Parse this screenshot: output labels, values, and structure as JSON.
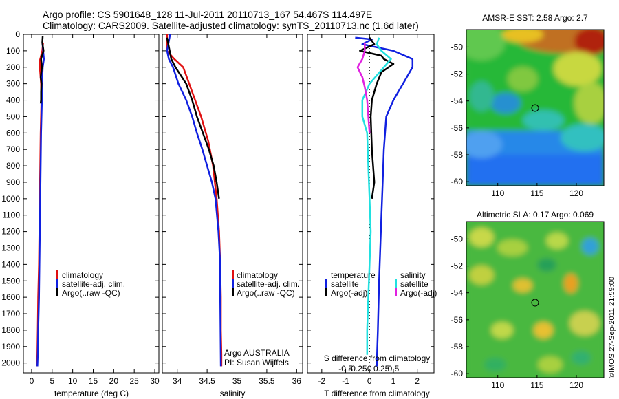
{
  "header": {
    "line1": "Argo profile: CS 5901648_128 11-Jul-2011 20110713_167 54.467S 114.497E",
    "line2": "Climatology: CARS2009. Satellite-adjusted climatology: synTS_20110713.nc (1.6d later)"
  },
  "colors": {
    "climatology": "#e01010",
    "satellite": "#1020e0",
    "argo": "#000000",
    "satellite_s": "#20e0e0",
    "argo_s": "#e020e0"
  },
  "chart_data": [
    {
      "type": "line",
      "panel": "temperature",
      "xlabel": "temperature (deg C)",
      "ylabel": "",
      "xlim": [
        -2,
        31
      ],
      "ylim": [
        2060,
        0
      ],
      "xticks": [
        "0",
        "5",
        "10",
        "15",
        "20",
        "25",
        "30"
      ],
      "xtick_values": [
        0,
        5,
        10,
        15,
        20,
        25,
        30
      ],
      "yticks": [
        "0",
        "100",
        "200",
        "300",
        "400",
        "500",
        "600",
        "700",
        "800",
        "900",
        "1000",
        "1100",
        "1200",
        "1300",
        "1400",
        "1500",
        "1600",
        "1700",
        "1800",
        "1900",
        "2000"
      ],
      "ytick_values": [
        0,
        100,
        200,
        300,
        400,
        500,
        600,
        700,
        800,
        900,
        1000,
        1100,
        1200,
        1300,
        1400,
        1500,
        1600,
        1700,
        1800,
        1900,
        2000
      ],
      "legend": [
        "climatology",
        "satellite-adj. clim.",
        "Argo(..raw -QC)"
      ],
      "series": [
        {
          "name": "climatology",
          "color_key": "climatology",
          "x": [
            2.8,
            2.6,
            2.0,
            2.0,
            2.3,
            2.4,
            2.3,
            2.2,
            2.1,
            2.0,
            1.9,
            1.8,
            1.7,
            1.6,
            1.5,
            1.4,
            1.3
          ],
          "y": [
            50,
            100,
            160,
            200,
            300,
            400,
            500,
            600,
            800,
            1000,
            1200,
            1400,
            1500,
            1600,
            1800,
            1950,
            2020
          ]
        },
        {
          "name": "satellite-adj. clim.",
          "color_key": "satellite",
          "x": [
            2.6,
            2.7,
            3.0,
            2.7,
            2.5,
            2.5,
            2.4,
            2.3,
            2.2,
            2.1,
            2.0,
            1.9,
            1.8,
            1.6,
            1.5,
            1.4
          ],
          "y": [
            50,
            70,
            150,
            200,
            300,
            400,
            500,
            600,
            800,
            1000,
            1200,
            1400,
            1600,
            1800,
            1950,
            2020
          ]
        },
        {
          "name": "Argo(..raw -QC)",
          "color_key": "argo",
          "x": [
            2.7,
            2.6,
            2.9,
            2.3,
            2.5,
            2.2,
            2.4,
            2.3,
            2.3,
            2.2
          ],
          "y": [
            10,
            50,
            100,
            150,
            200,
            260,
            300,
            350,
            400,
            420
          ]
        }
      ]
    },
    {
      "type": "line",
      "panel": "salinity",
      "xlabel": "salinity",
      "ylabel": "",
      "xlim": [
        33.75,
        36.1
      ],
      "ylim": [
        2060,
        0
      ],
      "xticks": [
        "34",
        "34.5",
        "35",
        "35.5",
        "36"
      ],
      "xtick_values": [
        34,
        34.5,
        35,
        35.5,
        36
      ],
      "legend": [
        "climatology",
        "satellite-adj. clim.",
        "Argo(..raw -QC)"
      ],
      "annotation": [
        "Argo AUSTRALIA",
        "PI: Susan Wijffels"
      ],
      "series": [
        {
          "name": "climatology",
          "color_key": "climatology",
          "x": [
            33.83,
            33.83,
            33.95,
            34.1,
            34.2,
            34.3,
            34.4,
            34.52,
            34.6,
            34.66,
            34.7,
            34.72,
            34.73,
            34.73,
            34.74,
            34.74
          ],
          "y": [
            0,
            100,
            150,
            200,
            300,
            400,
            500,
            650,
            800,
            1000,
            1200,
            1400,
            1600,
            1800,
            1950,
            2020
          ]
        },
        {
          "name": "satellite-adj. clim.",
          "color_key": "satellite",
          "x": [
            33.88,
            33.83,
            33.86,
            33.93,
            34.02,
            34.15,
            34.25,
            34.33,
            34.42,
            34.5,
            34.58,
            34.64,
            34.69,
            34.72,
            34.72,
            34.73
          ],
          "y": [
            0,
            100,
            150,
            200,
            300,
            400,
            500,
            600,
            700,
            800,
            900,
            1000,
            1200,
            1400,
            1600,
            2020
          ]
        },
        {
          "name": "Argo(..raw -QC)",
          "color_key": "argo",
          "x": [
            33.83,
            33.9,
            33.97,
            34.06,
            34.15,
            34.25,
            34.33,
            34.43,
            34.53,
            34.61,
            34.66,
            34.7
          ],
          "y": [
            20,
            150,
            200,
            250,
            300,
            400,
            500,
            600,
            700,
            800,
            900,
            1000
          ]
        }
      ]
    },
    {
      "type": "line",
      "panel": "difference",
      "xlabel": "T difference from climatology",
      "xlabel2": "S difference from climatology",
      "ylabel": "",
      "xlim": [
        -2.6,
        2.7
      ],
      "ylim": [
        2060,
        0
      ],
      "xticks": [
        "-2",
        "-1",
        "0",
        "1",
        "2"
      ],
      "xtick_values": [
        -2,
        -1,
        0,
        1,
        2
      ],
      "xticks_top": [
        "-0.5",
        "-0.25",
        "0",
        "0.25",
        "0.5"
      ],
      "xtick_values_top": [
        -1,
        -0.5,
        0,
        0.5,
        1
      ],
      "legend_groups": [
        {
          "title": "temperature",
          "items": [
            "satellite",
            "Argo(-adj)"
          ]
        },
        {
          "title": "salinity",
          "items": [
            "satellite",
            "Argo(-adj)"
          ]
        }
      ],
      "series": [
        {
          "name": "temperature satellite",
          "color_key": "satellite",
          "x": [
            -0.6,
            0.1,
            -0.3,
            1.0,
            1.8,
            1.8,
            1.4,
            1.0,
            0.7,
            0.6,
            0.55,
            0.5,
            0.45,
            0.4,
            0.35,
            0.3
          ],
          "y": [
            20,
            30,
            60,
            100,
            150,
            200,
            300,
            400,
            500,
            700,
            900,
            1100,
            1300,
            1500,
            1800,
            2020
          ]
        },
        {
          "name": "temperature Argo(-adj)",
          "color_key": "argo",
          "x": [
            0.0,
            0.2,
            -0.4,
            0.5,
            0.6,
            1.0,
            0.5,
            0.3,
            0.2,
            0.1,
            0.05,
            0.1,
            0.2,
            0.1
          ],
          "y": [
            20,
            60,
            100,
            130,
            150,
            180,
            230,
            300,
            350,
            400,
            500,
            700,
            900,
            1000
          ]
        },
        {
          "name": "salinity satellite",
          "color_key": "satellite_s",
          "x": [
            0.4,
            0.3,
            0.5,
            0.9,
            0.6,
            0.0,
            -0.3,
            -0.3,
            -0.1,
            -0.05,
            0.0,
            0.05,
            0.0,
            -0.05,
            -0.1,
            -0.1
          ],
          "y": [
            20,
            60,
            100,
            150,
            200,
            300,
            400,
            500,
            600,
            800,
            1000,
            1200,
            1400,
            1600,
            1800,
            1950
          ]
        },
        {
          "name": "salinity Argo(-adj)",
          "color_key": "argo_s",
          "x": [
            -0.2,
            -0.2,
            -0.3,
            -0.5,
            -0.3,
            -0.2,
            -0.1,
            -0.05,
            0.0
          ],
          "y": [
            50,
            100,
            150,
            200,
            260,
            320,
            400,
            500,
            600
          ]
        }
      ]
    }
  ],
  "maps": [
    {
      "title": "AMSR-E SST: 2.58 Argo: 2.7",
      "xticks": [
        "110",
        "115",
        "120"
      ],
      "yticks": [
        "-50",
        "-52",
        "-54",
        "-56",
        "-58",
        "-60"
      ],
      "xlim": [
        106,
        123.5
      ],
      "ylim": [
        -60.3,
        -48.7
      ],
      "marker": [
        114.5,
        -54.47
      ]
    },
    {
      "title": "Altimetric SLA: 0.17 Argo: 0.069",
      "xticks": [
        "110",
        "115",
        "120"
      ],
      "yticks": [
        "-50",
        "-52",
        "-54",
        "-56",
        "-58",
        "-60"
      ],
      "xlim": [
        106,
        123.5
      ],
      "ylim": [
        -60.3,
        -48.7
      ],
      "marker": [
        114.5,
        -54.47
      ]
    }
  ],
  "footer": {
    "stamp": "©IMOS 27-Sep-2011 21:59:00"
  }
}
